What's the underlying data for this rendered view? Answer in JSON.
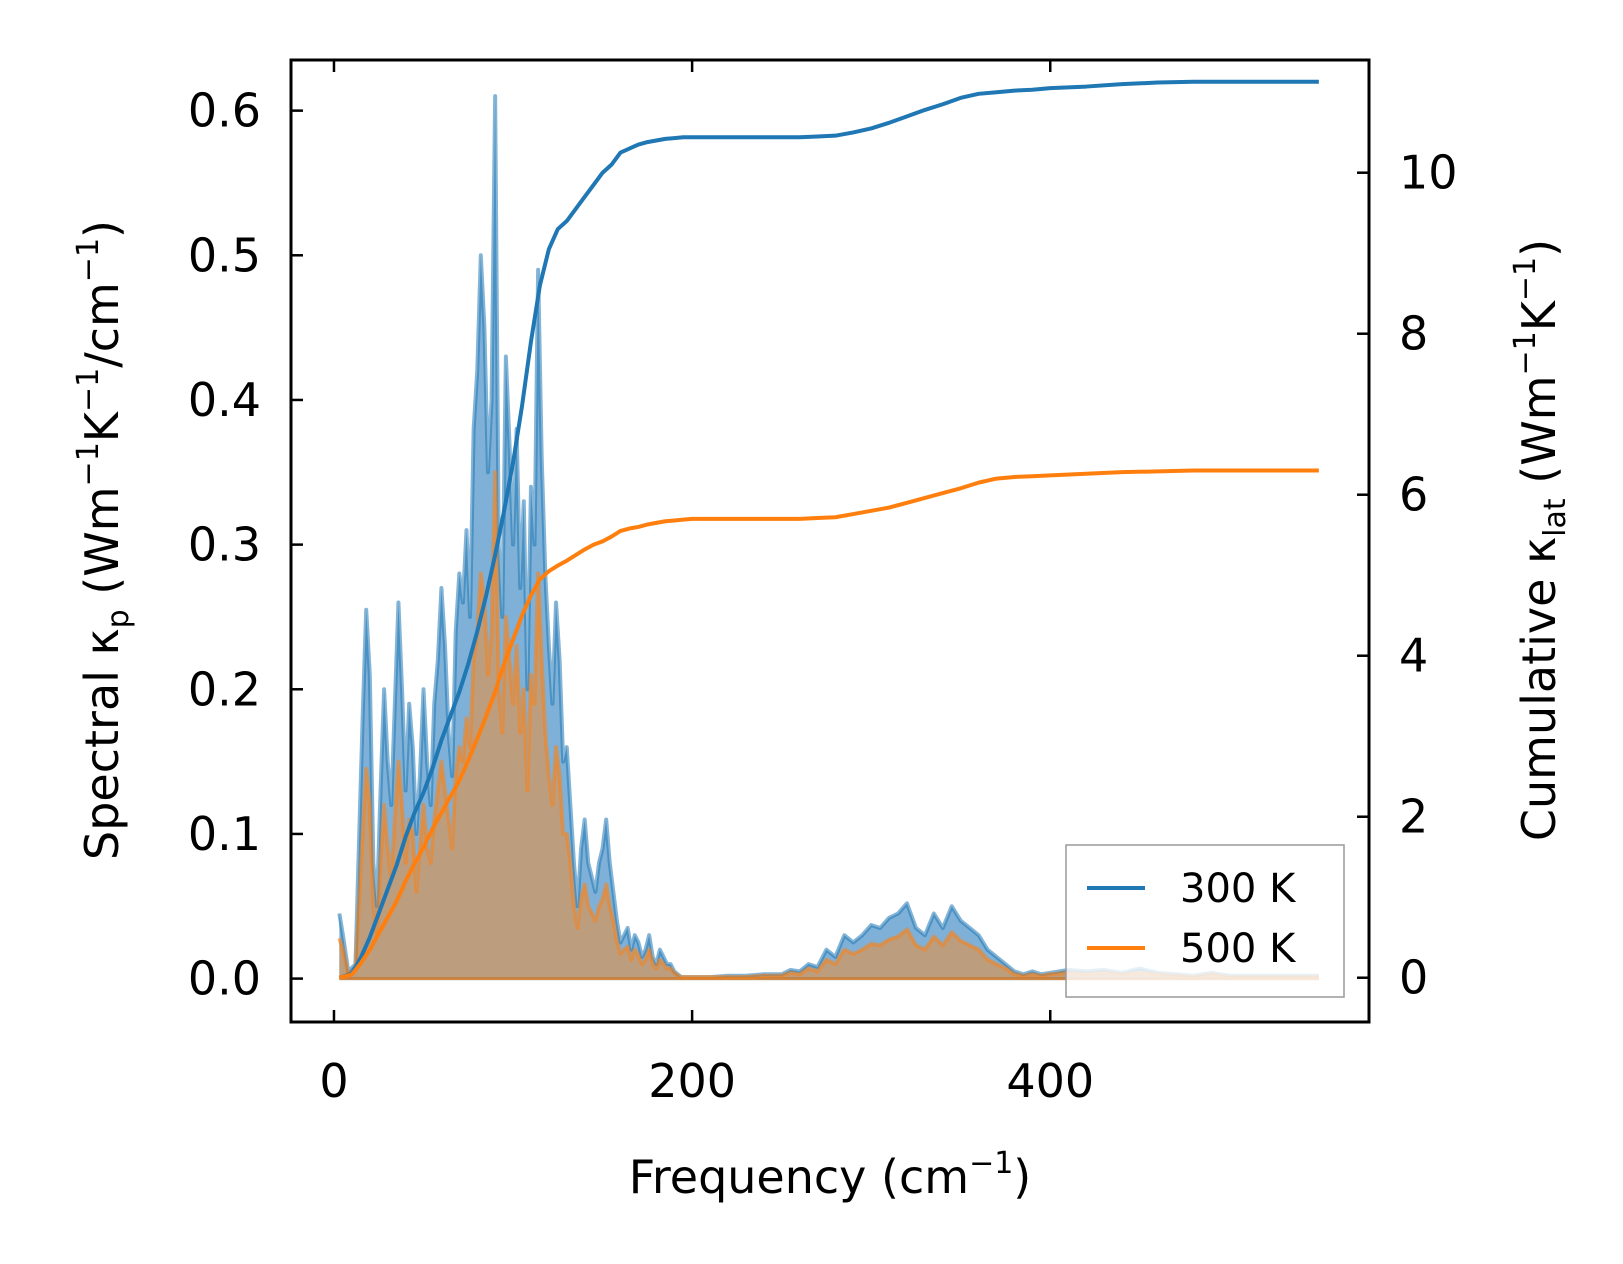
{
  "chart_data": {
    "type": "line",
    "title": "",
    "xlabel": "Frequency (cm⁻¹)",
    "xlabel_parts": [
      "Frequency (cm",
      "−1",
      ")"
    ],
    "ylabel_left": "Spectral κp (Wm⁻¹K⁻¹/cm⁻¹)",
    "ylabel_left_parts": [
      "Spectral κ",
      "p",
      " (Wm",
      "−1",
      "K",
      "−1",
      "/cm",
      "−1",
      ")"
    ],
    "ylabel_right": "Cumulative κlat (Wm⁻¹K⁻¹)",
    "ylabel_right_parts": [
      "Cumulative κ",
      "lat",
      " (Wm",
      "−1",
      "K",
      "−1",
      ")"
    ],
    "xlim": [
      -24,
      578
    ],
    "ylim_left": [
      -0.03,
      0.635
    ],
    "ylim_right": [
      -0.55,
      11.4
    ],
    "xticks": [
      0,
      200,
      400
    ],
    "xtick_labels": [
      "0",
      "200",
      "400"
    ],
    "yticks_left": [
      0.0,
      0.1,
      0.2,
      0.3,
      0.4,
      0.5,
      0.6
    ],
    "ytick_labels_left": [
      "0.0",
      "0.1",
      "0.2",
      "0.3",
      "0.4",
      "0.5",
      "0.6"
    ],
    "yticks_right": [
      0,
      2,
      4,
      6,
      8,
      10
    ],
    "ytick_labels_right": [
      "0",
      "2",
      "4",
      "6",
      "8",
      "10"
    ],
    "legend_position": "bottom-right",
    "colors": {
      "s300": "#1f77b4",
      "s500": "#ff7f0e",
      "fill300": "#7fb1d8",
      "fill500": "#c79a6f"
    },
    "series": [
      {
        "name": "300 K",
        "color": "#1f77b4",
        "spectral_x": [
          3,
          5,
          8,
          12,
          16,
          18,
          20,
          22,
          24,
          26,
          28,
          30,
          32,
          34,
          36,
          38,
          40,
          42,
          44,
          46,
          48,
          50,
          52,
          54,
          56,
          58,
          60,
          62,
          64,
          66,
          68,
          70,
          72,
          74,
          76,
          78,
          80,
          82,
          84,
          86,
          88,
          90,
          92,
          94,
          96,
          98,
          100,
          102,
          104,
          106,
          108,
          110,
          112,
          114,
          116,
          118,
          120,
          122,
          124,
          126,
          128,
          130,
          132,
          134,
          136,
          138,
          140,
          142,
          144,
          146,
          148,
          150,
          152,
          154,
          156,
          158,
          160,
          162,
          164,
          166,
          168,
          170,
          172,
          174,
          176,
          178,
          180,
          182,
          184,
          186,
          188,
          190,
          192,
          194,
          196,
          198,
          200,
          205,
          210,
          220,
          230,
          240,
          250,
          255,
          260,
          265,
          270,
          275,
          280,
          285,
          290,
          295,
          300,
          305,
          310,
          315,
          320,
          325,
          330,
          335,
          340,
          345,
          350,
          355,
          360,
          365,
          370,
          375,
          380,
          385,
          390,
          395,
          400,
          410,
          420,
          430,
          440,
          450,
          460,
          470,
          480,
          490,
          500,
          520,
          540,
          550
        ],
        "spectral_y": [
          0.045,
          0.03,
          0.005,
          0.01,
          0.18,
          0.255,
          0.21,
          0.08,
          0.05,
          0.13,
          0.2,
          0.15,
          0.12,
          0.19,
          0.26,
          0.2,
          0.13,
          0.19,
          0.16,
          0.1,
          0.14,
          0.2,
          0.15,
          0.12,
          0.19,
          0.22,
          0.27,
          0.23,
          0.17,
          0.14,
          0.24,
          0.28,
          0.26,
          0.31,
          0.25,
          0.38,
          0.42,
          0.5,
          0.45,
          0.35,
          0.4,
          0.61,
          0.3,
          0.25,
          0.43,
          0.37,
          0.3,
          0.38,
          0.27,
          0.33,
          0.2,
          0.34,
          0.3,
          0.49,
          0.36,
          0.28,
          0.23,
          0.19,
          0.26,
          0.22,
          0.15,
          0.16,
          0.12,
          0.08,
          0.05,
          0.09,
          0.11,
          0.08,
          0.07,
          0.06,
          0.08,
          0.09,
          0.11,
          0.08,
          0.06,
          0.04,
          0.025,
          0.03,
          0.035,
          0.02,
          0.03,
          0.025,
          0.015,
          0.02,
          0.03,
          0.015,
          0.01,
          0.02,
          0.015,
          0.01,
          0.01,
          0.005,
          0.003,
          0.001,
          0.001,
          0.001,
          0.001,
          0.001,
          0.001,
          0.002,
          0.002,
          0.003,
          0.003,
          0.006,
          0.005,
          0.01,
          0.008,
          0.02,
          0.015,
          0.03,
          0.025,
          0.03,
          0.037,
          0.035,
          0.042,
          0.045,
          0.052,
          0.035,
          0.03,
          0.045,
          0.035,
          0.05,
          0.04,
          0.035,
          0.03,
          0.02,
          0.015,
          0.01,
          0.005,
          0.003,
          0.005,
          0.003,
          0.004,
          0.006,
          0.005,
          0.006,
          0.004,
          0.007,
          0.004,
          0.003,
          0.002,
          0.004,
          0.002,
          0.002,
          0.002,
          0.002
        ],
        "cumulative_x": [
          3,
          10,
          15,
          20,
          25,
          30,
          35,
          40,
          45,
          50,
          55,
          60,
          65,
          70,
          75,
          80,
          85,
          90,
          95,
          100,
          105,
          110,
          115,
          120,
          125,
          130,
          135,
          140,
          145,
          150,
          155,
          160,
          165,
          170,
          175,
          180,
          185,
          190,
          195,
          200,
          210,
          220,
          240,
          260,
          270,
          280,
          290,
          300,
          310,
          320,
          330,
          340,
          350,
          360,
          370,
          380,
          390,
          400,
          420,
          440,
          460,
          480,
          500,
          520,
          540,
          550
        ],
        "cumulative_y": [
          0,
          0.05,
          0.25,
          0.5,
          0.8,
          1.1,
          1.4,
          1.75,
          2.05,
          2.3,
          2.6,
          2.95,
          3.25,
          3.55,
          3.9,
          4.3,
          4.75,
          5.25,
          5.8,
          6.4,
          7.1,
          7.9,
          8.6,
          9.05,
          9.3,
          9.4,
          9.55,
          9.7,
          9.85,
          10.0,
          10.1,
          10.25,
          10.3,
          10.35,
          10.38,
          10.4,
          10.42,
          10.43,
          10.44,
          10.44,
          10.44,
          10.44,
          10.44,
          10.44,
          10.45,
          10.46,
          10.5,
          10.55,
          10.62,
          10.7,
          10.78,
          10.85,
          10.93,
          10.98,
          11.0,
          11.02,
          11.03,
          11.05,
          11.07,
          11.1,
          11.12,
          11.13,
          11.13,
          11.13,
          11.13,
          11.13
        ]
      },
      {
        "name": "500 K",
        "color": "#ff7f0e",
        "spectral_x": [
          3,
          5,
          8,
          12,
          16,
          18,
          20,
          22,
          24,
          26,
          28,
          30,
          32,
          34,
          36,
          38,
          40,
          42,
          44,
          46,
          48,
          50,
          52,
          54,
          56,
          58,
          60,
          62,
          64,
          66,
          68,
          70,
          72,
          74,
          76,
          78,
          80,
          82,
          84,
          86,
          88,
          90,
          92,
          94,
          96,
          98,
          100,
          102,
          104,
          106,
          108,
          110,
          112,
          114,
          116,
          118,
          120,
          122,
          124,
          126,
          128,
          130,
          132,
          134,
          136,
          138,
          140,
          142,
          144,
          146,
          148,
          150,
          152,
          154,
          156,
          158,
          160,
          162,
          164,
          166,
          168,
          170,
          172,
          174,
          176,
          178,
          180,
          182,
          184,
          186,
          188,
          190,
          192,
          194,
          196,
          198,
          200,
          205,
          210,
          220,
          230,
          240,
          250,
          255,
          260,
          265,
          270,
          275,
          280,
          285,
          290,
          295,
          300,
          305,
          310,
          315,
          320,
          325,
          330,
          335,
          340,
          345,
          350,
          355,
          360,
          365,
          370,
          375,
          380,
          385,
          390,
          395,
          400,
          410,
          420,
          430,
          440,
          450,
          460,
          470,
          480,
          490,
          500,
          520,
          540,
          550
        ],
        "spectral_y": [
          0.028,
          0.02,
          0.003,
          0.006,
          0.1,
          0.145,
          0.12,
          0.05,
          0.03,
          0.08,
          0.12,
          0.09,
          0.07,
          0.11,
          0.15,
          0.12,
          0.08,
          0.11,
          0.1,
          0.06,
          0.09,
          0.12,
          0.09,
          0.08,
          0.11,
          0.13,
          0.15,
          0.13,
          0.11,
          0.09,
          0.14,
          0.16,
          0.15,
          0.18,
          0.16,
          0.22,
          0.24,
          0.28,
          0.26,
          0.21,
          0.24,
          0.35,
          0.2,
          0.17,
          0.25,
          0.22,
          0.19,
          0.23,
          0.17,
          0.2,
          0.13,
          0.21,
          0.19,
          0.28,
          0.22,
          0.17,
          0.14,
          0.12,
          0.16,
          0.14,
          0.1,
          0.1,
          0.08,
          0.05,
          0.035,
          0.055,
          0.065,
          0.05,
          0.045,
          0.04,
          0.05,
          0.055,
          0.065,
          0.05,
          0.04,
          0.026,
          0.017,
          0.02,
          0.022,
          0.013,
          0.02,
          0.016,
          0.01,
          0.013,
          0.02,
          0.01,
          0.007,
          0.013,
          0.01,
          0.007,
          0.007,
          0.004,
          0.002,
          0.001,
          0.001,
          0.001,
          0.001,
          0.001,
          0.001,
          0.001,
          0.001,
          0.002,
          0.002,
          0.004,
          0.003,
          0.007,
          0.005,
          0.013,
          0.01,
          0.02,
          0.017,
          0.02,
          0.024,
          0.023,
          0.027,
          0.029,
          0.034,
          0.023,
          0.02,
          0.029,
          0.023,
          0.032,
          0.026,
          0.023,
          0.02,
          0.013,
          0.01,
          0.007,
          0.003,
          0.002,
          0.003,
          0.002,
          0.003,
          0.004,
          0.003,
          0.004,
          0.003,
          0.004,
          0.003,
          0.002,
          0.001,
          0.003,
          0.001,
          0.001,
          0.001,
          0.001
        ],
        "cumulative_x": [
          3,
          10,
          15,
          20,
          25,
          30,
          35,
          40,
          45,
          50,
          55,
          60,
          65,
          70,
          75,
          80,
          85,
          90,
          95,
          100,
          105,
          110,
          115,
          120,
          125,
          130,
          135,
          140,
          145,
          150,
          155,
          160,
          165,
          170,
          175,
          180,
          185,
          190,
          195,
          200,
          210,
          220,
          240,
          260,
          270,
          280,
          290,
          300,
          310,
          320,
          330,
          340,
          350,
          360,
          370,
          380,
          390,
          400,
          420,
          440,
          460,
          480,
          500,
          520,
          540,
          550
        ],
        "cumulative_y": [
          0,
          0.04,
          0.18,
          0.35,
          0.55,
          0.75,
          0.95,
          1.2,
          1.42,
          1.62,
          1.85,
          2.05,
          2.25,
          2.45,
          2.7,
          2.97,
          3.25,
          3.55,
          3.9,
          4.2,
          4.5,
          4.75,
          4.95,
          5.05,
          5.12,
          5.18,
          5.25,
          5.32,
          5.38,
          5.42,
          5.48,
          5.55,
          5.58,
          5.6,
          5.63,
          5.65,
          5.67,
          5.68,
          5.69,
          5.7,
          5.7,
          5.7,
          5.7,
          5.7,
          5.71,
          5.72,
          5.76,
          5.8,
          5.84,
          5.9,
          5.96,
          6.02,
          6.08,
          6.15,
          6.2,
          6.22,
          6.23,
          6.24,
          6.26,
          6.28,
          6.29,
          6.3,
          6.3,
          6.3,
          6.3,
          6.3
        ]
      }
    ]
  }
}
